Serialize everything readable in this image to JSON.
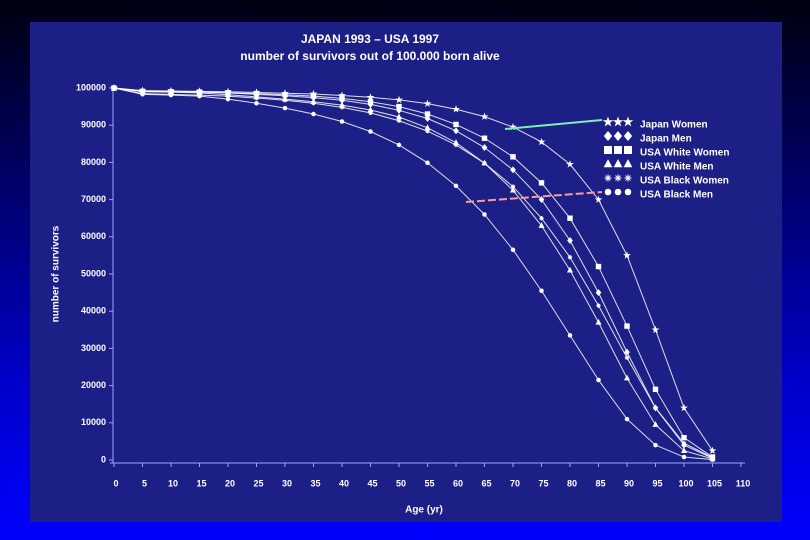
{
  "chart_data": {
    "type": "line",
    "title": "JAPAN 1993  –  USA 1997",
    "subtitle": "number of survivors out of 100.000 born alive",
    "x_label": "Age (yr)",
    "y_label": "number of survivors",
    "x": [
      0,
      5,
      10,
      15,
      20,
      25,
      30,
      35,
      40,
      45,
      50,
      55,
      60,
      65,
      70,
      75,
      80,
      85,
      90,
      95,
      100,
      105
    ],
    "xlim": [
      0,
      110
    ],
    "xticks": [
      0,
      5,
      10,
      15,
      20,
      25,
      30,
      35,
      40,
      45,
      50,
      55,
      60,
      65,
      70,
      75,
      80,
      85,
      90,
      95,
      100,
      105,
      110
    ],
    "ylim": [
      0,
      100000
    ],
    "yticks": [
      0,
      10000,
      20000,
      30000,
      40000,
      50000,
      60000,
      70000,
      80000,
      90000,
      100000
    ],
    "series": [
      {
        "name": "Japan Women",
        "color": "#ffffff",
        "marker": "star",
        "values": [
          100000,
          99300,
          99200,
          99100,
          99000,
          98800,
          98600,
          98400,
          98000,
          97500,
          96800,
          95800,
          94300,
          92300,
          89500,
          85500,
          79500,
          70000,
          55000,
          35000,
          14000,
          2500
        ]
      },
      {
        "name": "Japan Men",
        "color": "#ffffff",
        "marker": "diamond",
        "values": [
          100000,
          99200,
          99100,
          99000,
          98700,
          98300,
          97900,
          97400,
          96700,
          95600,
          94000,
          91800,
          88500,
          84000,
          78000,
          70000,
          59000,
          45000,
          29000,
          14000,
          4000,
          500
        ]
      },
      {
        "name": "USA White Women",
        "color": "#ffffff",
        "marker": "square",
        "values": [
          100000,
          99100,
          99000,
          98900,
          98700,
          98500,
          98200,
          97800,
          97200,
          96300,
          95000,
          93000,
          90200,
          86500,
          81500,
          74500,
          65000,
          52000,
          36000,
          19000,
          6000,
          800
        ]
      },
      {
        "name": "USA White Men",
        "color": "#ffffff",
        "marker": "triangle",
        "values": [
          100000,
          99000,
          98900,
          98700,
          98200,
          97600,
          97000,
          96300,
          95400,
          94100,
          92200,
          89300,
          85300,
          79800,
          72500,
          63000,
          51000,
          37000,
          22000,
          9500,
          2500,
          300
        ]
      },
      {
        "name": "USA Black Women",
        "color": "#ffffff",
        "marker": "cross",
        "values": [
          100000,
          98500,
          98300,
          98100,
          97800,
          97300,
          96700,
          95900,
          94800,
          93300,
          91200,
          88400,
          84700,
          79800,
          73500,
          65000,
          54500,
          41500,
          27500,
          14000,
          4500,
          700
        ]
      },
      {
        "name": "USA Black Men",
        "color": "#ffffff",
        "marker": "circle",
        "values": [
          100000,
          98300,
          98100,
          97800,
          97000,
          95900,
          94600,
          93000,
          91000,
          88300,
          84700,
          79900,
          73700,
          66000,
          56500,
          45500,
          33500,
          21500,
          11000,
          4000,
          800,
          100
        ]
      }
    ]
  }
}
